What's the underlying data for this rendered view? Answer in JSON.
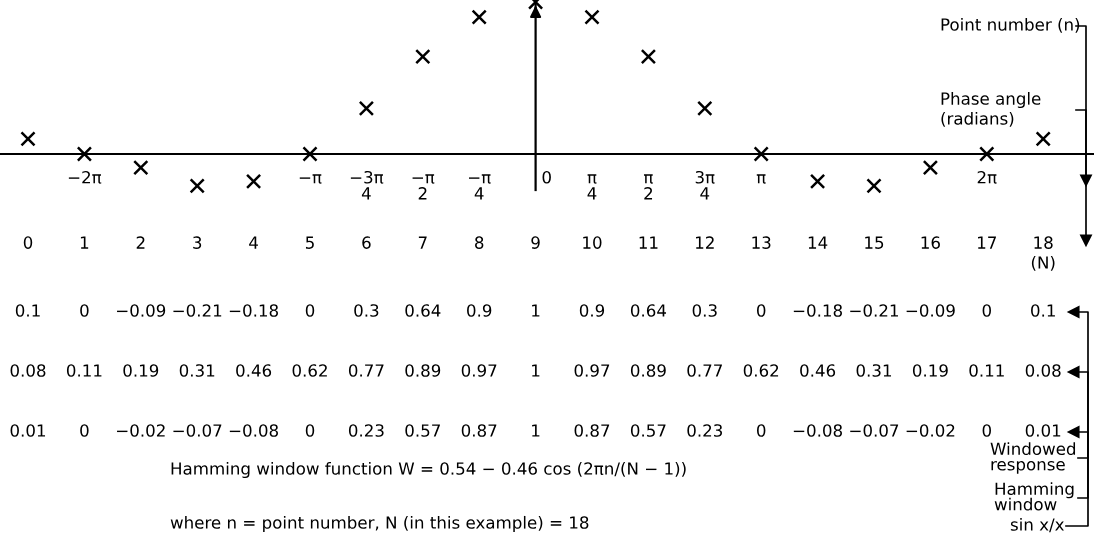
{
  "chart_data": [
    {
      "type": "scatter",
      "marker": "cross",
      "data_labels": true,
      "categories": [
        "0",
        "1",
        "2",
        "3",
        "4",
        "5",
        "6",
        "7",
        "8",
        "9",
        "10",
        "11",
        "12",
        "13",
        "14",
        "15",
        "16",
        "17",
        "18\n(N)"
      ],
      "series": [
        {
          "color": "#000000",
          "values": [
            0.1,
            0,
            -0.09,
            -0.21,
            -0.18,
            0,
            0.3,
            0.64,
            0.9,
            1,
            0.9,
            0.64,
            0.3,
            0,
            -0.18,
            -0.21,
            -0.09,
            0,
            0.1
          ]
        }
      ],
      "annotations": [
        "−2π",
        "−π",
        "−3π\n4",
        "−π\n2",
        "−π\n4",
        "0",
        "π\n4",
        "π\n2",
        "3π\n4",
        "π",
        "2π",
        "Point number (n)",
        "Phase angle\n(radians)",
        "Hamming window function W = 0.54 − 0.46 cos (2πn/(N − 1))",
        "where n = point number, N (in this example) = 18",
        "sin x/x"
      ]
    },
    {
      "type": "other",
      "annotations": [
        "Hamming\nwindow",
        "Windowed\nresponse",
        "0.08",
        "0.11",
        "0.19",
        "0.31",
        "0.46",
        "0.62",
        "0.77",
        "0.89",
        "0.97",
        "1",
        "0.97",
        "0.89",
        "0.77",
        "0.62",
        "0.46",
        "0.31",
        "0.19",
        "0.11",
        "0.08",
        "0.01",
        "0",
        "−0.02",
        "−0.07",
        "−0.08",
        "0",
        "0.23",
        "0.57",
        "0.87",
        "1",
        "0.87",
        "0.57",
        "0.23",
        "0",
        "−0.08",
        "−0.07",
        "−0.02",
        "0",
        "0.01"
      ]
    }
  ]
}
